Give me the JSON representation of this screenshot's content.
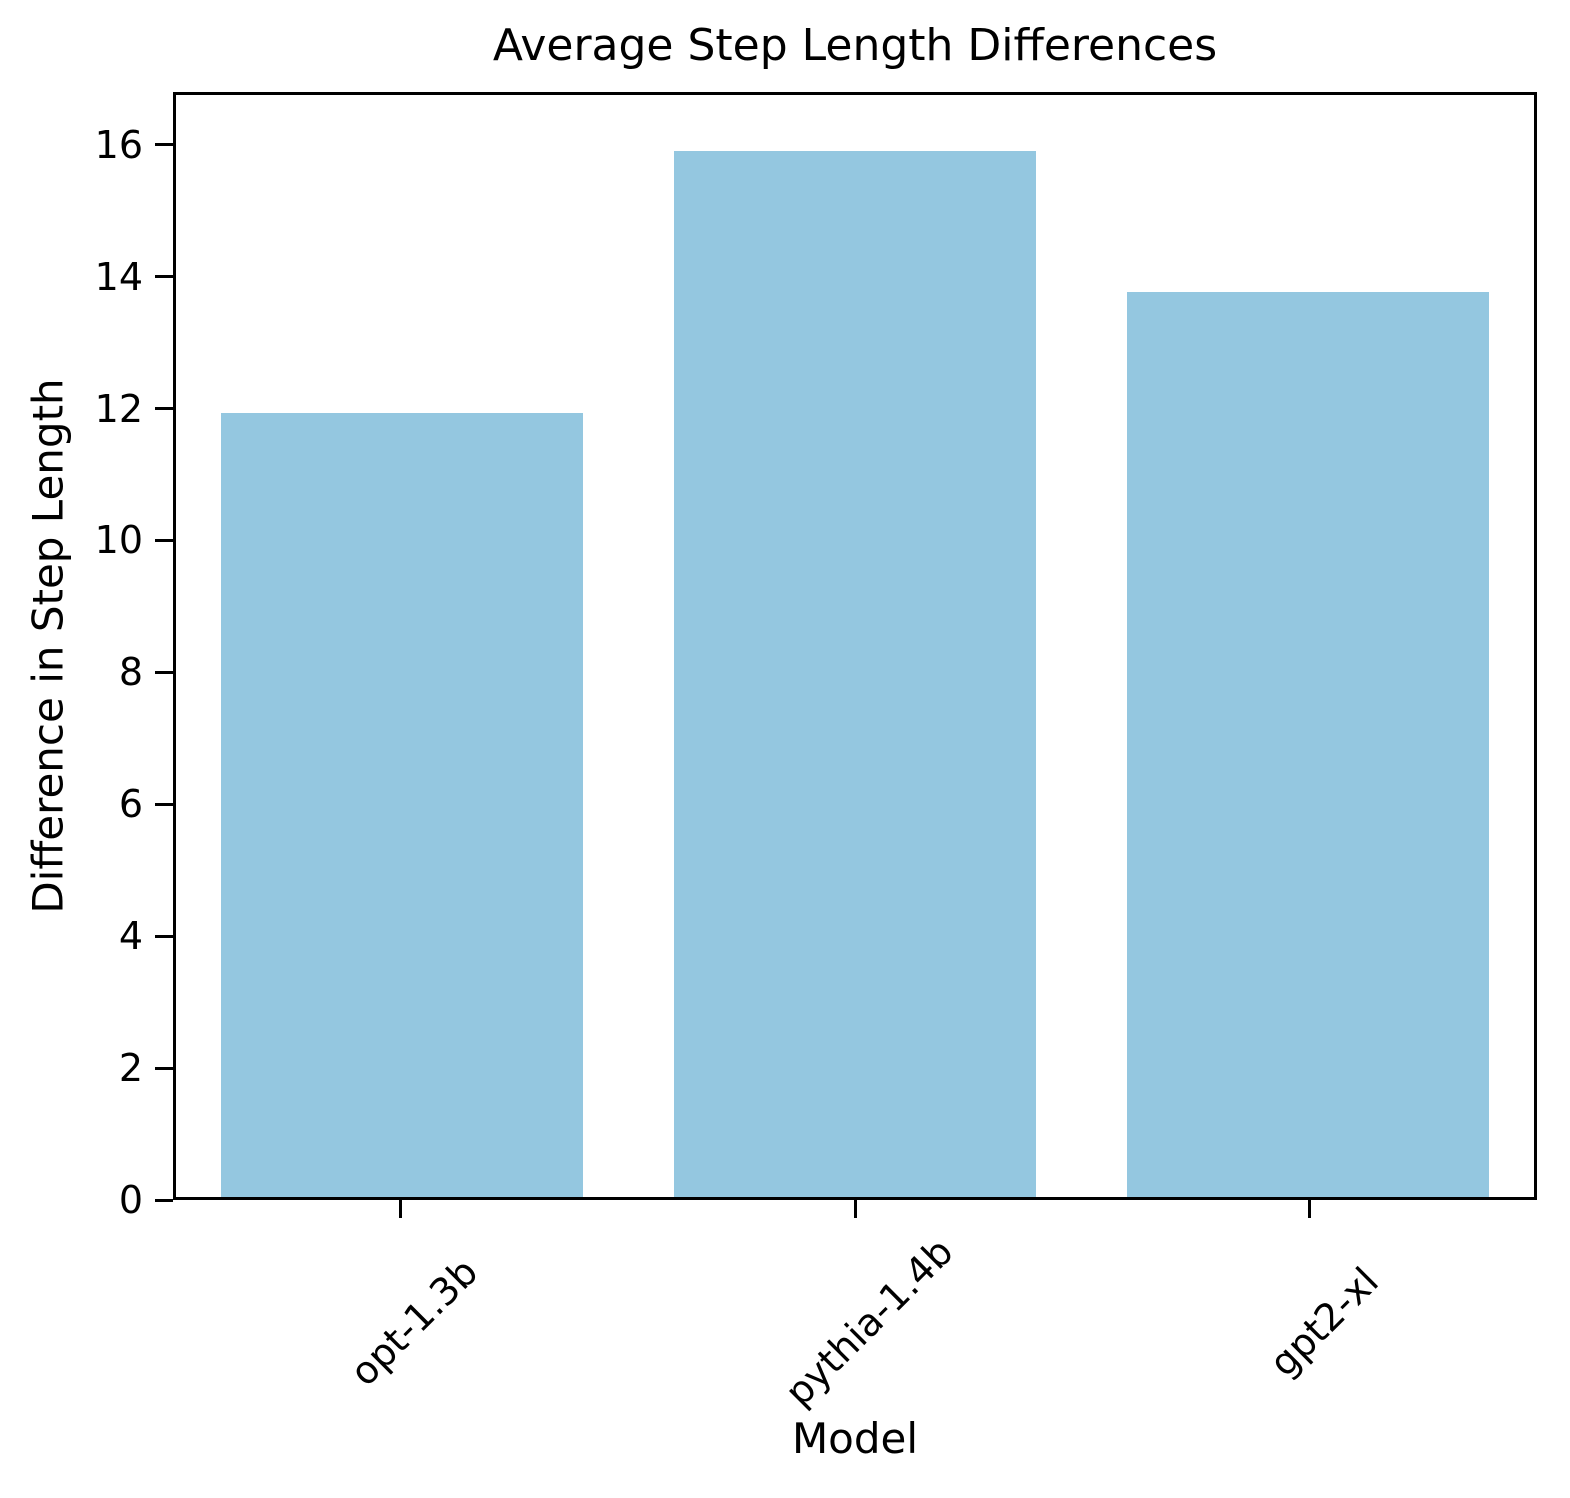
{
  "chart_data": {
    "type": "bar",
    "title": "Average Step Length Differences",
    "xlabel": "Model",
    "ylabel": "Difference in Step Length",
    "categories": [
      "opt-1.3b",
      "pythia-1.4b",
      "gpt2-xl"
    ],
    "values": [
      11.95,
      15.95,
      13.8
    ],
    "yticks": [
      0,
      2,
      4,
      6,
      8,
      10,
      12,
      14,
      16
    ],
    "ylim": [
      0,
      16.8
    ],
    "xlim_note": "3 categories, bar width 0.8 of slot",
    "grid": false,
    "legend": null,
    "bar_color": "#94c7e0",
    "axis_color": "#000000",
    "text_color": "#000000"
  }
}
